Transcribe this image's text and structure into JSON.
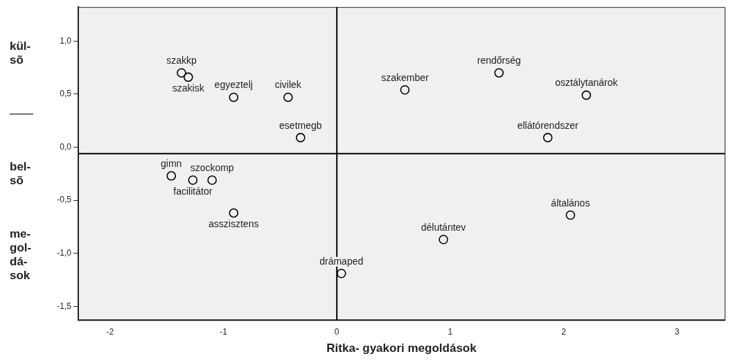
{
  "chart_data": {
    "type": "scatter",
    "xlabel": "Ritka- gyakori megoldások",
    "ylabel": "kül- sõ — bel- sõ me- gol- dá- sok",
    "x": [
      -1.37,
      -1.31,
      -0.91,
      -0.43,
      -0.32,
      0.6,
      1.43,
      2.2,
      1.86,
      -1.46,
      -1.27,
      -1.1,
      -0.91,
      0.04,
      0.94,
      2.06
    ],
    "series": [
      {
        "color": "#000000",
        "values": [
          0.7,
          0.66,
          0.47,
          0.47,
          0.09,
          0.54,
          0.7,
          0.49,
          0.09,
          -0.27,
          -0.31,
          -0.31,
          -0.62,
          -1.19,
          -0.87,
          -0.64
        ]
      }
    ],
    "annotations": [
      {
        "text": "szakkp",
        "x": -1.37,
        "y": 0.7
      },
      {
        "text": "szakisk",
        "x": -1.31,
        "y": 0.66
      },
      {
        "text": "egyeztelj",
        "x": -0.91,
        "y": 0.47
      },
      {
        "text": "civilek",
        "x": -0.43,
        "y": 0.47
      },
      {
        "text": "esetmegb",
        "x": -0.32,
        "y": 0.09
      },
      {
        "text": "szakember",
        "x": 0.6,
        "y": 0.54
      },
      {
        "text": "rendőrség",
        "x": 1.43,
        "y": 0.7
      },
      {
        "text": "osztálytanárok",
        "x": 2.2,
        "y": 0.49
      },
      {
        "text": "ellátórendszer",
        "x": 1.86,
        "y": 0.09
      },
      {
        "text": "gimn",
        "x": -1.46,
        "y": -0.27
      },
      {
        "text": "facilitátor",
        "x": -1.27,
        "y": -0.31
      },
      {
        "text": "szockomp",
        "x": -1.1,
        "y": -0.31
      },
      {
        "text": "asszisztens",
        "x": -0.91,
        "y": -0.62
      },
      {
        "text": "drámaped",
        "x": 0.04,
        "y": -1.19
      },
      {
        "text": "délutántev",
        "x": 0.94,
        "y": -0.87
      },
      {
        "text": "általános",
        "x": 2.06,
        "y": -0.64
      }
    ],
    "xlim": [
      -2.28,
      3.42
    ],
    "ylim": [
      -1.63,
      1.32
    ],
    "xticks": [
      -2,
      -1,
      0,
      1,
      2,
      3
    ],
    "yticks": [
      {
        "value": 1,
        "label": "1,0"
      },
      {
        "value": 0.5,
        "label": "0,5"
      },
      {
        "value": 0,
        "label": "0,0"
      },
      {
        "value": -0.5,
        "label": "-0,5"
      },
      {
        "value": -1,
        "label": "-1,0"
      },
      {
        "value": -1.5,
        "label": "-1,5"
      }
    ],
    "ref_lines": [
      {
        "axis": "x",
        "value": 0,
        "color": "#000000"
      },
      {
        "axis": "y",
        "value": -0.06,
        "color": "#000000"
      }
    ],
    "marker": "circle",
    "grid": false,
    "legend": false
  }
}
